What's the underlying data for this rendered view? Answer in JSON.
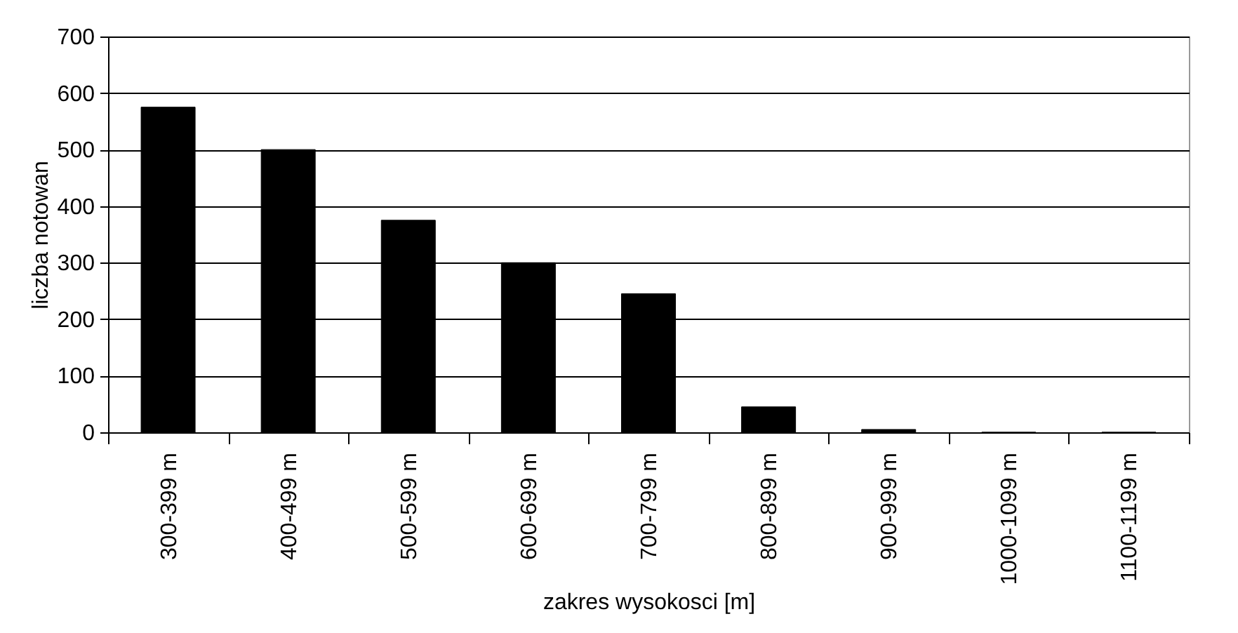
{
  "chart_data": {
    "type": "bar",
    "xlabel": "zakres wysokosci [m]",
    "ylabel": "liczba notowan",
    "categories": [
      "300-399 m",
      "400-499 m",
      "500-599 m",
      "600-699 m",
      "700-799 m",
      "800-899 m",
      "900-999 m",
      "1000-1099 m",
      "1100-1199 m"
    ],
    "values": [
      575,
      500,
      375,
      300,
      245,
      45,
      5,
      0,
      0
    ],
    "color": "#000000",
    "ylim": [
      0,
      700
    ],
    "yticks": [
      0,
      100,
      200,
      300,
      400,
      500,
      600,
      700
    ],
    "grid": "y"
  }
}
